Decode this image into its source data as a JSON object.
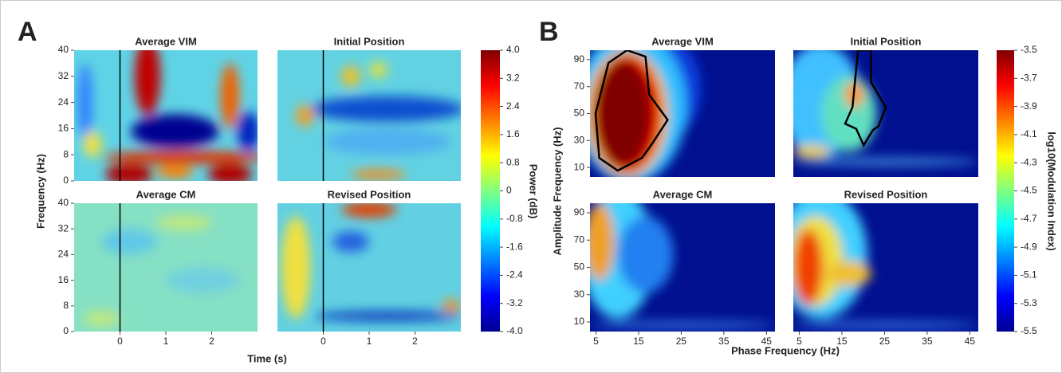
{
  "panel_a": {
    "label": "A",
    "plots": [
      {
        "title": "Average VIM"
      },
      {
        "title": "Initial Position"
      },
      {
        "title": "Average CM"
      },
      {
        "title": "Revised Position"
      }
    ],
    "y_label": "Frequency (Hz)",
    "x_label": "Time (s)",
    "xlim": [
      -1,
      3
    ],
    "xticks": [
      0,
      1,
      2
    ],
    "ylim": [
      0,
      40
    ],
    "yticks": [
      40,
      32,
      24,
      16,
      8,
      0
    ],
    "colorbar": {
      "label": "Power (dB)",
      "lim": [
        -4,
        4
      ],
      "ticks": [
        {
          "value": 4,
          "label": "4.0"
        },
        3.2,
        2.4,
        1.6,
        0.8,
        0,
        -0.8,
        -1.6,
        -2.4,
        -3.2,
        {
          "value": -4,
          "label": "-4.0"
        }
      ]
    }
  },
  "panel_b": {
    "label": "B",
    "plots": [
      {
        "title": "Average VIM"
      },
      {
        "title": "Initial Position"
      },
      {
        "title": "Average CM"
      },
      {
        "title": "Revised Position"
      }
    ],
    "y_label": "Amplitude Frequency (Hz)",
    "x_label": "Phase Frequency (Hz)",
    "xlim": [
      3.6,
      47
    ],
    "xticks": [
      5,
      15,
      25,
      35,
      45
    ],
    "ylim": [
      3,
      97
    ],
    "yticks": [
      90,
      70,
      50,
      30,
      10
    ],
    "colorbar": {
      "label": "log10(Modulation Index)",
      "lim": [
        -5.5,
        -3.5
      ],
      "ticks": [
        -3.5,
        -3.7,
        -3.9,
        -4.1,
        -4.3,
        -4.5,
        -4.7,
        -4.9,
        -5.1,
        -5.3,
        -5.5
      ]
    }
  }
}
